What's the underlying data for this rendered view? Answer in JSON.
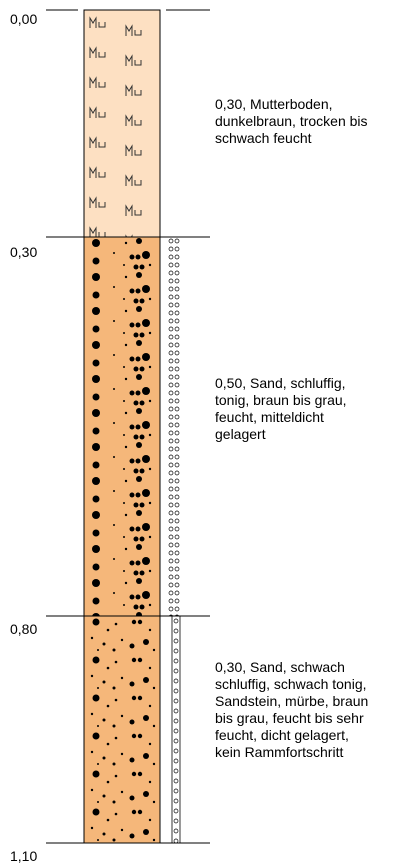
{
  "depth_markers": [
    "0,00",
    "0,30",
    "0,80",
    "1,10"
  ],
  "layers": [
    {
      "lines": [
        "0,30, Mutterboden,",
        "dunkelbraun, trocken bis",
        "schwach feucht"
      ]
    },
    {
      "lines": [
        "0,50, Sand, schluffig,",
        "tonig, braun bis grau,",
        "feucht, mitteldicht",
        "gelagert"
      ]
    },
    {
      "lines": [
        "0,30, Sand, schwach",
        "schluffig, schwach tonig,",
        "Sandstein, mürbe, braun",
        "bis grau, feucht bis sehr",
        "feucht, dicht gelagert,",
        "kein Rammfortschritt"
      ]
    }
  ]
}
